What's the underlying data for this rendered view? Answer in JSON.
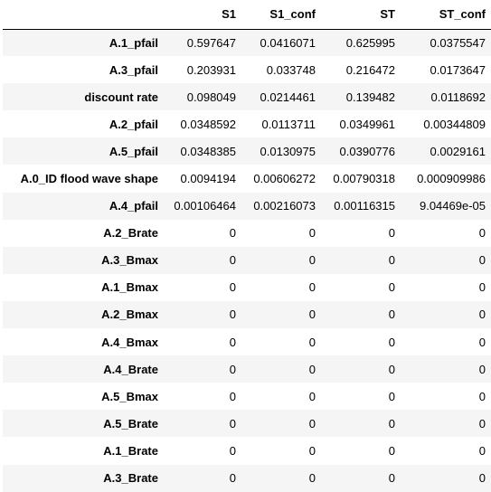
{
  "table": {
    "columns": [
      "",
      "S1",
      "S1_conf",
      "ST",
      "ST_conf"
    ],
    "rows": [
      {
        "index": "A.1_pfail",
        "values": [
          "0.597647",
          "0.0416071",
          "0.625995",
          "0.0375547"
        ]
      },
      {
        "index": "A.3_pfail",
        "values": [
          "0.203931",
          "0.033748",
          "0.216472",
          "0.0173647"
        ]
      },
      {
        "index": "discount rate",
        "values": [
          "0.098049",
          "0.0214461",
          "0.139482",
          "0.0118692"
        ]
      },
      {
        "index": "A.2_pfail",
        "values": [
          "0.0348592",
          "0.0113711",
          "0.0349961",
          "0.00344809"
        ]
      },
      {
        "index": "A.5_pfail",
        "values": [
          "0.0348385",
          "0.0130975",
          "0.0390776",
          "0.0029161"
        ]
      },
      {
        "index": "A.0_ID flood wave shape",
        "values": [
          "0.0094194",
          "0.00606272",
          "0.00790318",
          "0.000909986"
        ]
      },
      {
        "index": "A.4_pfail",
        "values": [
          "0.00106464",
          "0.00216073",
          "0.00116315",
          "9.04469e-05"
        ]
      },
      {
        "index": "A.2_Brate",
        "values": [
          "0",
          "0",
          "0",
          "0"
        ]
      },
      {
        "index": "A.3_Bmax",
        "values": [
          "0",
          "0",
          "0",
          "0"
        ]
      },
      {
        "index": "A.1_Bmax",
        "values": [
          "0",
          "0",
          "0",
          "0"
        ]
      },
      {
        "index": "A.2_Bmax",
        "values": [
          "0",
          "0",
          "0",
          "0"
        ]
      },
      {
        "index": "A.4_Bmax",
        "values": [
          "0",
          "0",
          "0",
          "0"
        ]
      },
      {
        "index": "A.4_Brate",
        "values": [
          "0",
          "0",
          "0",
          "0"
        ]
      },
      {
        "index": "A.5_Bmax",
        "values": [
          "0",
          "0",
          "0",
          "0"
        ]
      },
      {
        "index": "A.5_Brate",
        "values": [
          "0",
          "0",
          "0",
          "0"
        ]
      },
      {
        "index": "A.1_Brate",
        "values": [
          "0",
          "0",
          "0",
          "0"
        ]
      },
      {
        "index": "A.3_Brate",
        "values": [
          "0",
          "0",
          "0",
          "0"
        ]
      }
    ]
  },
  "colors": {
    "stripe": "#f5f5f5",
    "background": "#ffffff",
    "header_rule": "#000000"
  }
}
